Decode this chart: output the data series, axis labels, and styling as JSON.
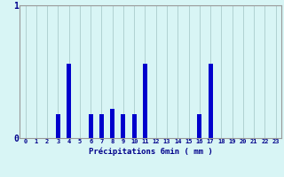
{
  "hours": [
    0,
    1,
    2,
    3,
    4,
    5,
    6,
    7,
    8,
    9,
    10,
    11,
    12,
    13,
    14,
    15,
    16,
    17,
    18,
    19,
    20,
    21,
    22,
    23
  ],
  "values": [
    0,
    0,
    0,
    0.18,
    0.56,
    0,
    0.18,
    0.18,
    0.22,
    0.18,
    0.18,
    0.56,
    0,
    0,
    0,
    0,
    0.18,
    0.56,
    0,
    0,
    0,
    0,
    0,
    0
  ],
  "bar_color": "#0000cc",
  "bg_color": "#d8f5f5",
  "grid_color": "#aacccc",
  "axis_color": "#999999",
  "text_color": "#00008b",
  "xlabel": "Précipitations 6min ( mm )",
  "ylim": [
    0,
    1
  ],
  "yticks": [
    0,
    1
  ],
  "ytick_labels": [
    "0",
    "1"
  ],
  "bar_width": 0.4
}
